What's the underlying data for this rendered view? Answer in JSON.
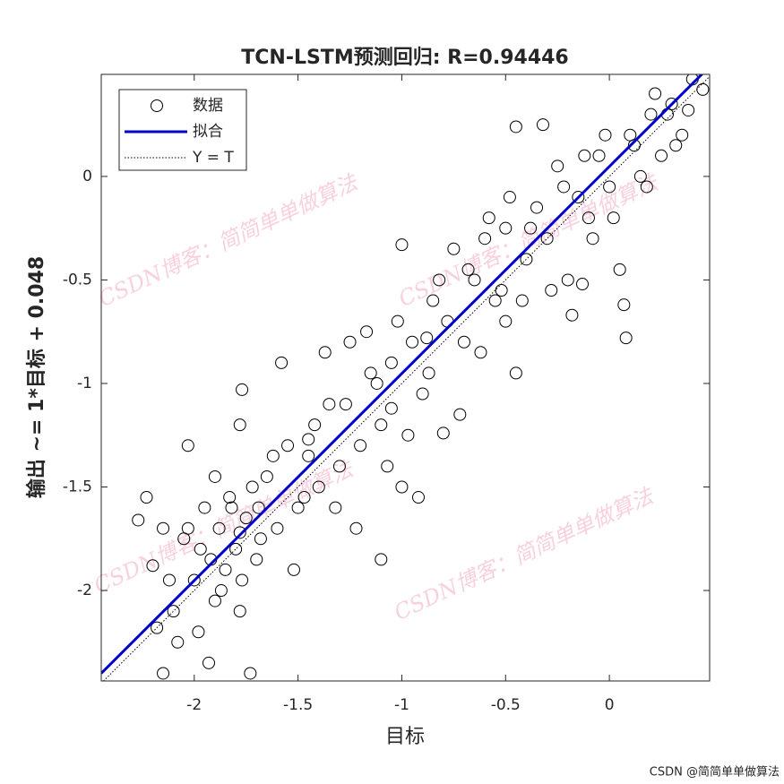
{
  "chart_data": {
    "type": "scatter",
    "title": "TCN-LSTM预测回归: R=0.94446",
    "xlabel": "目标",
    "ylabel": "输出 ~= 1*目标 + 0.048",
    "xlim": [
      -2.448,
      0.483
    ],
    "ylim": [
      -2.437,
      0.493
    ],
    "xticks": [
      -2,
      -1.5,
      -1,
      -0.5,
      0
    ],
    "yticks": [
      -2,
      -1.5,
      -1,
      -0.5,
      0
    ],
    "legend": "upper left",
    "series": [
      {
        "name": "数据",
        "color": "#000000",
        "x": [
          -2.27,
          -2.2,
          -2.15,
          -2.1,
          -2.05,
          -2.0,
          -1.98,
          -1.95,
          -1.92,
          -1.9,
          -1.88,
          -1.85,
          -1.83,
          -1.8,
          -1.78,
          -1.75,
          -1.72,
          -1.7,
          -1.68,
          -1.65,
          -2.12,
          -2.08,
          -2.03,
          -1.97,
          -1.93,
          -1.87,
          -1.82,
          -1.77,
          -1.73,
          -1.69,
          -2.18,
          -2.03,
          -1.9,
          -1.78,
          -1.6,
          -1.55,
          -1.5,
          -1.45,
          -1.4,
          -1.35,
          -1.3,
          -1.25,
          -1.2,
          -1.15,
          -1.1,
          -1.05,
          -1.0,
          -0.95,
          -0.9,
          -0.85,
          -1.58,
          -1.52,
          -1.47,
          -1.42,
          -1.37,
          -1.32,
          -1.27,
          -1.22,
          -1.17,
          -1.12,
          -1.07,
          -1.02,
          -0.97,
          -0.92,
          -0.87,
          -0.82,
          -0.8,
          -0.75,
          -0.7,
          -0.65,
          -0.6,
          -0.55,
          -0.5,
          -0.45,
          -0.4,
          -0.35,
          -0.3,
          -0.25,
          -0.2,
          -0.15,
          -0.1,
          -0.05,
          0.0,
          0.05,
          0.1,
          0.15,
          0.2,
          0.25,
          0.3,
          0.35,
          0.4,
          -0.78,
          -0.72,
          -0.68,
          -0.62,
          -0.58,
          -0.52,
          -0.48,
          -0.42,
          -0.38,
          -0.32,
          -0.28,
          -0.22,
          -0.18,
          -0.12,
          -0.08,
          -0.02,
          0.02,
          0.08,
          0.12,
          0.18,
          0.22,
          0.28,
          0.32,
          0.38,
          0.45,
          -1.77,
          -1.1,
          -0.45,
          0.07,
          -1.45,
          -2.15,
          -1.78,
          -1.05,
          -0.88,
          -1.0,
          -0.13,
          -0.5,
          -1.62,
          -2.23
        ],
        "values": [
          -1.66,
          -1.88,
          -2.4,
          -2.1,
          -1.75,
          -1.95,
          -2.2,
          -1.6,
          -1.85,
          -2.05,
          -1.7,
          -1.9,
          -1.55,
          -1.8,
          -2.1,
          -1.65,
          -1.5,
          -1.85,
          -1.75,
          -1.45,
          -1.95,
          -2.25,
          -1.7,
          -1.8,
          -2.35,
          -2.0,
          -1.6,
          -1.95,
          -2.4,
          -1.6,
          -2.18,
          -1.3,
          -1.45,
          -1.2,
          -1.7,
          -1.3,
          -1.6,
          -1.35,
          -1.5,
          -1.1,
          -1.4,
          -0.8,
          -1.3,
          -0.95,
          -1.2,
          -0.9,
          -1.5,
          -0.8,
          -1.05,
          -0.6,
          -0.9,
          -1.9,
          -1.55,
          -1.2,
          -0.85,
          -1.6,
          -1.1,
          -1.7,
          -0.75,
          -1.0,
          -1.4,
          -0.7,
          -1.25,
          -1.55,
          -0.95,
          -0.5,
          -1.24,
          -0.35,
          -0.8,
          -0.5,
          -0.3,
          -0.6,
          -0.25,
          -0.95,
          -0.4,
          -0.15,
          -0.3,
          0.05,
          -0.5,
          -0.1,
          -0.2,
          0.1,
          -0.05,
          -0.45,
          0.2,
          0.0,
          0.3,
          0.1,
          0.35,
          0.2,
          0.47,
          -0.7,
          -1.15,
          -0.45,
          -0.85,
          -0.2,
          -0.55,
          -0.1,
          -0.6,
          -0.25,
          0.25,
          -0.55,
          -0.05,
          -0.67,
          0.1,
          -0.3,
          0.2,
          -0.2,
          -0.78,
          0.15,
          -0.05,
          0.4,
          0.3,
          0.15,
          0.32,
          0.42,
          -1.03,
          -1.85,
          0.24,
          -0.62,
          -1.27,
          -1.7,
          -1.72,
          -1.12,
          -0.78,
          -0.33,
          -0.52,
          -0.7,
          -1.35,
          -1.55
        ]
      },
      {
        "name": "拟合",
        "color": "#0000cc",
        "slope": 1,
        "intercept": 0.048
      },
      {
        "name": "Y = T",
        "color": "#000000",
        "slope": 1,
        "intercept": 0
      }
    ],
    "watermarks": [
      "CSDN博客：简简单单做算法",
      "CSDN博客：简简单单做算法",
      "CSDN博客：简简单单做算法",
      "CSDN博客：简简单单做算法"
    ],
    "footer": "CSDN @简简单单做算法"
  }
}
